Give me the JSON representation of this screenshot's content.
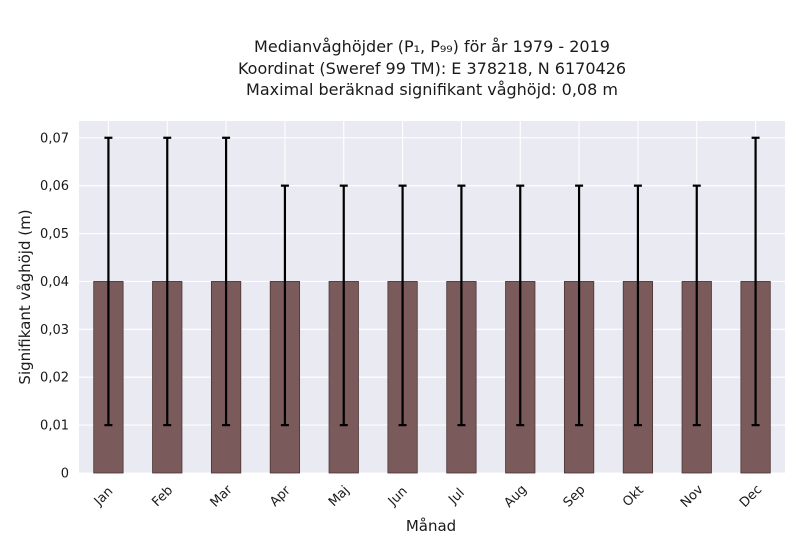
{
  "chart_data": {
    "type": "bar",
    "title_lines": [
      "Medianvåghöjder (P₁, P₉₉) för år 1979 - 2019",
      "Koordinat (Sweref 99 TM): E 378218, N 6170426",
      "Maximal beräknad signifikant våghöjd: 0,08 m"
    ],
    "xlabel": "Månad",
    "ylabel": "Signifikant våghöjd (m)",
    "categories": [
      "Jan",
      "Feb",
      "Mar",
      "Apr",
      "Maj",
      "Jun",
      "Jul",
      "Aug",
      "Sep",
      "Okt",
      "Nov",
      "Dec"
    ],
    "values": [
      0.04,
      0.04,
      0.04,
      0.04,
      0.04,
      0.04,
      0.04,
      0.04,
      0.04,
      0.04,
      0.04,
      0.04
    ],
    "error_low": [
      0.01,
      0.01,
      0.01,
      0.01,
      0.01,
      0.01,
      0.01,
      0.01,
      0.01,
      0.01,
      0.01,
      0.01
    ],
    "error_high": [
      0.07,
      0.07,
      0.07,
      0.06,
      0.06,
      0.06,
      0.06,
      0.06,
      0.06,
      0.06,
      0.06,
      0.07
    ],
    "ylim": [
      0,
      0.0735
    ],
    "yticks": [
      0,
      0.01,
      0.02,
      0.03,
      0.04,
      0.05,
      0.06,
      0.07
    ],
    "ytick_labels": [
      "0",
      "0,01",
      "0,02",
      "0,03",
      "0,04",
      "0,05",
      "0,06",
      "0,07"
    ],
    "grid": true,
    "colors": {
      "bar": "#7a5a5a",
      "bar_edge": "#4a3434",
      "error_bar": "#000000",
      "plot_background": "#eaeaf2",
      "grid": "#ffffff"
    }
  }
}
